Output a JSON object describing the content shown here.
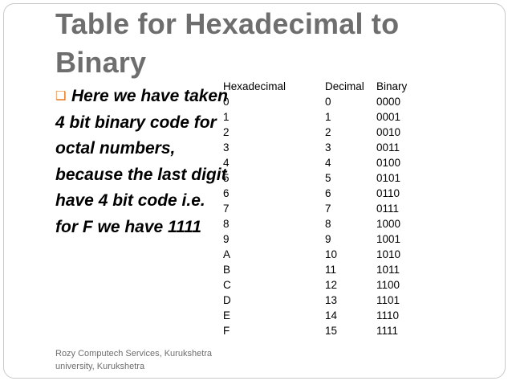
{
  "slide": {
    "title": "Table for Hexadecimal to Binary",
    "bullet_text": "Here we have taken 4 bit binary code for octal numbers, because the last digit have 4 bit code i.e. for F we have 1111",
    "footer": "Rozy Computech Services, Kurukshetra university, Kurukshetra",
    "accent_color": "#e46c0a"
  },
  "table": {
    "headers": [
      "Hexadecimal",
      "Decimal",
      "Binary"
    ],
    "rows": [
      [
        "0",
        "0",
        "0000"
      ],
      [
        "1",
        "1",
        "0001"
      ],
      [
        "2",
        "2",
        "0010"
      ],
      [
        "3",
        "3",
        "0011"
      ],
      [
        "4",
        "4",
        "0100"
      ],
      [
        "5",
        "5",
        "0101"
      ],
      [
        "6",
        "6",
        "0110"
      ],
      [
        "7",
        "7",
        "0111"
      ],
      [
        "8",
        "8",
        "1000"
      ],
      [
        "9",
        "9",
        "1001"
      ],
      [
        "A",
        "10",
        "1010"
      ],
      [
        "B",
        "11",
        "1011"
      ],
      [
        "C",
        "12",
        "1100"
      ],
      [
        "D",
        "13",
        "1101"
      ],
      [
        "E",
        "14",
        "1110"
      ],
      [
        "F",
        "15",
        "1111"
      ]
    ]
  }
}
